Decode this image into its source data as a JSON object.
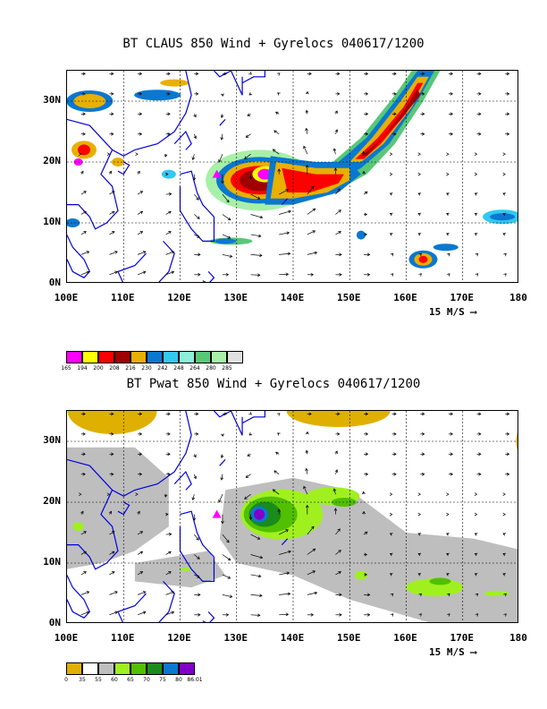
{
  "panel1": {
    "title": "BT CLAUS 850 Wind + Gyrelocs 040617/1200",
    "y_ticks": [
      "30N",
      "20N",
      "10N",
      "0N"
    ],
    "x_ticks": [
      "100E",
      "110E",
      "120E",
      "130E",
      "140E",
      "150E",
      "160E",
      "170E",
      "180"
    ],
    "ref_vector": "15 M/S",
    "colorbar": {
      "colors": [
        "#ff00ff",
        "#ffff00",
        "#ff0000",
        "#a00000",
        "#e8b000",
        "#0a78d0",
        "#33c8f0",
        "#8cf0d8",
        "#58c878",
        "#a8f0a8",
        "#e0e0e0"
      ],
      "labels": [
        "165",
        "194",
        "200",
        "208",
        "216",
        "230",
        "242",
        "248",
        "264",
        "280",
        "285"
      ]
    }
  },
  "panel2": {
    "title": "BT Pwat 850 Wind + Gyrelocs 040617/1200",
    "y_ticks": [
      "30N",
      "20N",
      "10N",
      "0N"
    ],
    "x_ticks": [
      "100E",
      "110E",
      "120E",
      "130E",
      "140E",
      "150E",
      "160E",
      "170E",
      "180"
    ],
    "ref_vector": "15 M/S",
    "colorbar": {
      "colors": [
        "#e0b000",
        "#ffffff",
        "#bebebe",
        "#a0f020",
        "#50c000",
        "#1a8c1a",
        "#0a78d0",
        "#8000c8"
      ],
      "labels": [
        "0",
        "35",
        "55",
        "60",
        "65",
        "70",
        "75",
        "80",
        "86.01"
      ]
    }
  },
  "map_extent": {
    "lon": [
      100,
      180
    ],
    "lat": [
      0,
      35
    ]
  },
  "gyre_markers": [
    {
      "lon": 126.5,
      "lat": 18.0,
      "color": "#ff00ff"
    }
  ],
  "colors": {
    "coastline": "#0000dd",
    "vector": "#000000"
  }
}
